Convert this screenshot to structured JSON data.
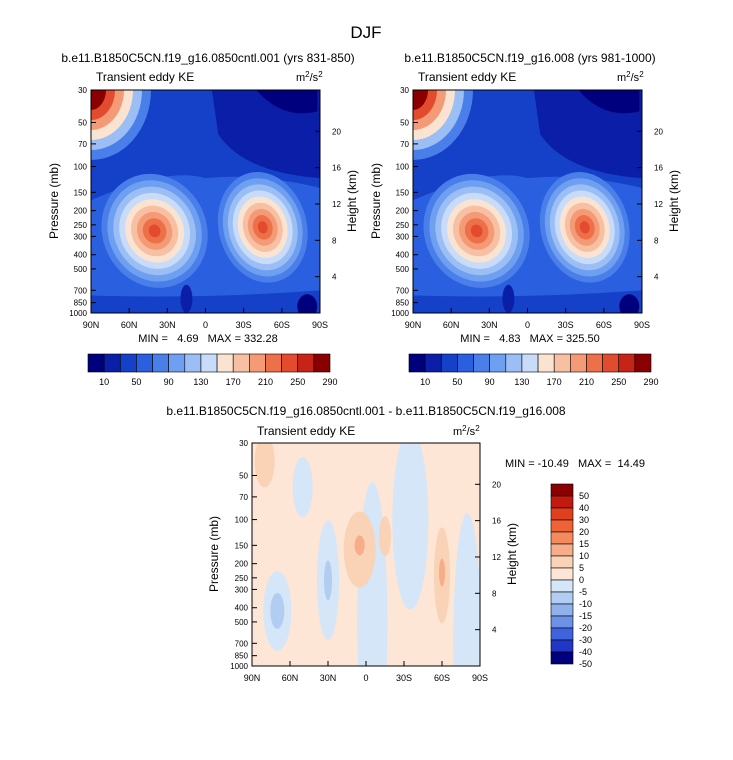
{
  "page_title": "DJF",
  "chart_data": [
    {
      "type": "heatmap",
      "title": "b.e11.B1850C5CN.f19_g16.0850cntl.001 (yrs 831-850)",
      "subtitle": "Transient eddy KE",
      "units": "m²/s²",
      "xlabel": "",
      "ylabel": "Pressure (mb)",
      "ylabel_right": "Height (km)",
      "x_ticks": [
        "90N",
        "60N",
        "30N",
        "0",
        "30S",
        "60S",
        "90S"
      ],
      "y_ticks": [
        30,
        50,
        70,
        100,
        150,
        200,
        250,
        300,
        400,
        500,
        700,
        850,
        1000
      ],
      "y2_ticks": [
        20,
        16,
        12,
        8,
        4
      ],
      "stats": "MIN =   4.69   MAX = 332.28",
      "min": 4.69,
      "max": 332.28,
      "colorbar_levels": [
        10,
        30,
        50,
        70,
        90,
        110,
        130,
        150,
        170,
        190,
        210,
        230,
        250,
        270,
        290
      ],
      "colorbar_labels": [
        "10",
        "50",
        "90",
        "130",
        "170",
        "210",
        "250",
        "290"
      ],
      "features": [
        {
          "lat": 40,
          "p": 275,
          "value": 300
        },
        {
          "lat": -45,
          "p": 260,
          "value": 280
        },
        {
          "lat": 85,
          "p": 30,
          "value": 332
        }
      ]
    },
    {
      "type": "heatmap",
      "title": "b.e11.B1850C5CN.f19_g16.008 (yrs 981-1000)",
      "subtitle": "Transient eddy KE",
      "units": "m²/s²",
      "xlabel": "",
      "ylabel": "Pressure (mb)",
      "ylabel_right": "Height (km)",
      "x_ticks": [
        "90N",
        "60N",
        "30N",
        "0",
        "30S",
        "60S",
        "90S"
      ],
      "y_ticks": [
        30,
        50,
        70,
        100,
        150,
        200,
        250,
        300,
        400,
        500,
        700,
        850,
        1000
      ],
      "y2_ticks": [
        20,
        16,
        12,
        8,
        4
      ],
      "stats": "MIN =   4.83   MAX = 325.50",
      "min": 4.83,
      "max": 325.5,
      "colorbar_levels": [
        10,
        30,
        50,
        70,
        90,
        110,
        130,
        150,
        170,
        190,
        210,
        230,
        250,
        270,
        290
      ],
      "colorbar_labels": [
        "10",
        "50",
        "90",
        "130",
        "170",
        "210",
        "250",
        "290"
      ],
      "features": [
        {
          "lat": 40,
          "p": 275,
          "value": 290
        },
        {
          "lat": -45,
          "p": 260,
          "value": 270
        },
        {
          "lat": 85,
          "p": 30,
          "value": 325
        }
      ]
    },
    {
      "type": "heatmap",
      "title": "b.e11.B1850C5CN.f19_g16.0850cntl.001 - b.e11.B1850C5CN.f19_g16.008",
      "subtitle": "Transient eddy KE",
      "units": "m²/s²",
      "xlabel": "",
      "ylabel": "Pressure (mb)",
      "ylabel_right": "Height (km)",
      "x_ticks": [
        "90N",
        "60N",
        "30N",
        "0",
        "30S",
        "60S",
        "90S"
      ],
      "y_ticks": [
        30,
        50,
        70,
        100,
        150,
        200,
        250,
        300,
        400,
        500,
        700,
        850,
        1000
      ],
      "y2_ticks": [
        20,
        16,
        12,
        8,
        4
      ],
      "stats": "MIN = -10.49   MAX =  14.49",
      "min": -10.49,
      "max": 14.49,
      "colorbar_levels": [
        -50,
        -40,
        -30,
        -20,
        -15,
        -10,
        -5,
        0,
        5,
        10,
        15,
        20,
        30,
        40,
        50
      ],
      "colorbar_labels": [
        "50",
        "40",
        "30",
        "20",
        "15",
        "10",
        "5",
        "0",
        "-5",
        "-10",
        "-15",
        "-20",
        "-30",
        "-40",
        "-50"
      ],
      "features": [
        {
          "lat": 5,
          "p": 160,
          "value": 12
        },
        {
          "lat": -60,
          "p": 230,
          "value": 10
        },
        {
          "lat": 70,
          "p": 370,
          "value": -8
        },
        {
          "lat": 30,
          "p": 250,
          "value": -6
        }
      ]
    }
  ],
  "colors": {
    "main_palette": [
      "#00007f",
      "#0a1ea8",
      "#1540c8",
      "#2a5fe0",
      "#4a7fea",
      "#6f9ff0",
      "#9bbff5",
      "#c8dcf9",
      "#fbe3d2",
      "#f8c0a2",
      "#f49a76",
      "#ee7049",
      "#e34b2e",
      "#c72317",
      "#8a0000"
    ],
    "diff_palette": [
      "#8a0000",
      "#c31a10",
      "#e0401e",
      "#ef6236",
      "#f48a5e",
      "#f7ae88",
      "#fad3b7",
      "#fde6d6",
      "#d4e6f8",
      "#b2cdf2",
      "#8fb1ec",
      "#6b92e6",
      "#3f63dc",
      "#1f37c4",
      "#00007f"
    ]
  }
}
